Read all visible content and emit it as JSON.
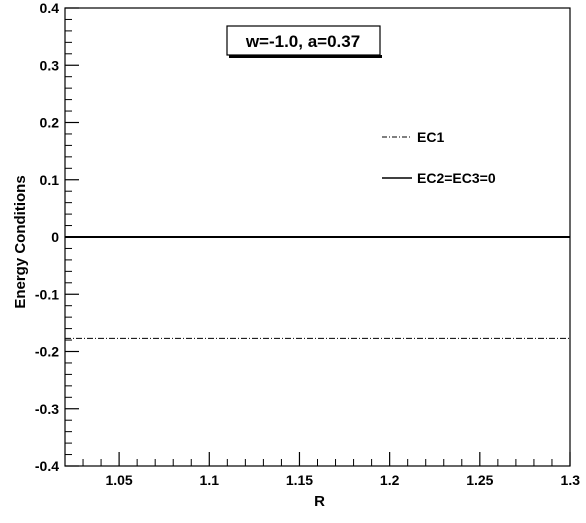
{
  "chart_data": {
    "type": "line",
    "title": "w=-1.0, a=0.37",
    "xlabel": "R",
    "ylabel": "Energy Conditions",
    "xlim": [
      1.02,
      1.3
    ],
    "ylim": [
      -0.4,
      0.4
    ],
    "x_ticks": [
      1.05,
      1.1,
      1.15,
      1.2,
      1.25,
      1.3
    ],
    "x_tick_labels": [
      "1.05",
      "1.1",
      "1.15",
      "1.2",
      "1.25",
      "1.3"
    ],
    "y_ticks": [
      -0.4,
      -0.3,
      -0.2,
      -0.1,
      0,
      0.1,
      0.2,
      0.3,
      0.4
    ],
    "y_tick_labels": [
      "-0.4",
      "-0.3",
      "-0.2",
      "-0.1",
      "0",
      "0.1",
      "0.2",
      "0.3",
      "0.4"
    ],
    "grid": false,
    "legend_position": "right",
    "series": [
      {
        "name": "EC1",
        "style": "dash-dot",
        "color": "#000000",
        "x": [
          1.02,
          1.3
        ],
        "y": [
          -0.177,
          -0.177
        ]
      },
      {
        "name": "EC2=EC3=0",
        "style": "solid",
        "color": "#000000",
        "x": [
          1.02,
          1.3
        ],
        "y": [
          0,
          0
        ]
      }
    ]
  }
}
